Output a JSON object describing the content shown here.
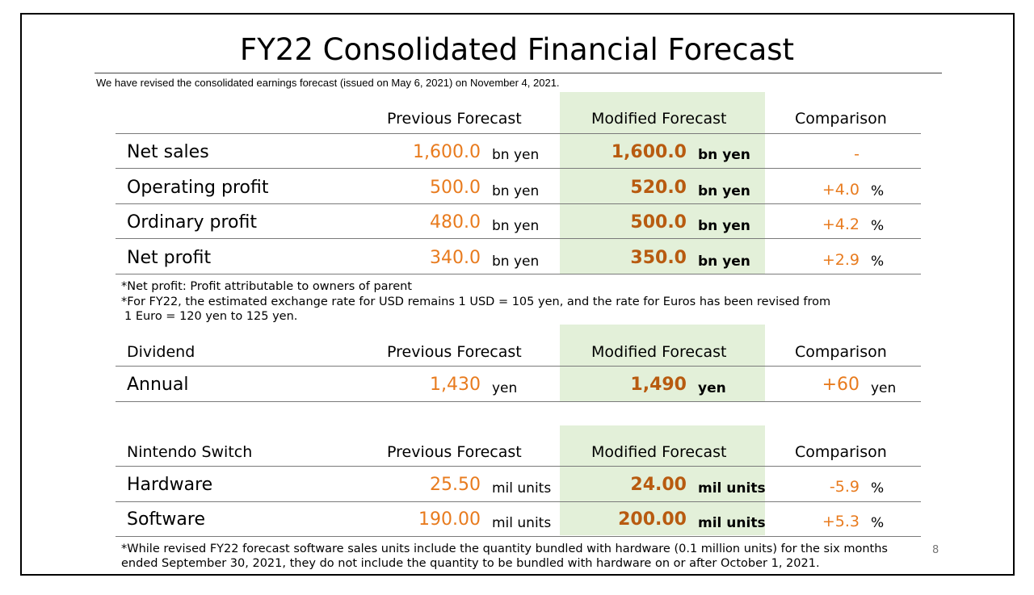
{
  "title": "FY22 Consolidated Financial Forecast",
  "subtitle": "We have revised the consolidated earnings forecast (issued on May 6, 2021) on November 4, 2021.",
  "columns": {
    "previous": "Previous Forecast",
    "modified": "Modified Forecast",
    "comparison": "Comparison"
  },
  "earnings": {
    "rows": [
      {
        "label": "Net sales",
        "prev": "1,600.0",
        "prev_unit": "bn yen",
        "mod": "1,600.0",
        "mod_unit": "bn yen",
        "cmp": "-",
        "cmp_unit": ""
      },
      {
        "label": "Operating profit",
        "prev": "500.0",
        "prev_unit": "bn yen",
        "mod": "520.0",
        "mod_unit": "bn yen",
        "cmp": "+4.0",
        "cmp_unit": "%"
      },
      {
        "label": "Ordinary profit",
        "prev": "480.0",
        "prev_unit": "bn yen",
        "mod": "500.0",
        "mod_unit": "bn yen",
        "cmp": "+4.2",
        "cmp_unit": "%"
      },
      {
        "label": "Net profit",
        "prev": "340.0",
        "prev_unit": "bn yen",
        "mod": "350.0",
        "mod_unit": "bn yen",
        "cmp": "+2.9",
        "cmp_unit": "%"
      }
    ],
    "notes": [
      "*Net profit: Profit attributable to owners of parent",
      "*For FY22, the estimated exchange rate for USD remains 1 USD = 105 yen, and the rate for Euros has been revised from",
      " 1 Euro = 120 yen to 125 yen."
    ]
  },
  "dividend": {
    "section_label": "Dividend",
    "row": {
      "label": "Annual",
      "prev": "1,430",
      "prev_unit": "yen",
      "mod": "1,490",
      "mod_unit": "yen",
      "cmp": "+60",
      "cmp_unit": "yen"
    }
  },
  "switch": {
    "section_label": "Nintendo Switch",
    "rows": [
      {
        "label": "Hardware",
        "prev": "25.50",
        "prev_unit": "mil units",
        "mod": "24.00",
        "mod_unit": "mil units",
        "cmp": "-5.9",
        "cmp_unit": "%"
      },
      {
        "label": "Software",
        "prev": "190.00",
        "prev_unit": "mil units",
        "mod": "200.00",
        "mod_unit": "mil units",
        "cmp": "+5.3",
        "cmp_unit": "%"
      }
    ],
    "notes": [
      "*While revised FY22 forecast software sales units include the quantity bundled with hardware (0.1 million units) for the six months",
      "ended September 30, 2021, they do not include the quantity to be bundled with hardware on or after October 1, 2021."
    ]
  },
  "page_number": "8",
  "colors": {
    "previous_value": "#e87b1e",
    "modified_value": "#b85b10",
    "modified_column_bg": "#e3f0d9"
  }
}
